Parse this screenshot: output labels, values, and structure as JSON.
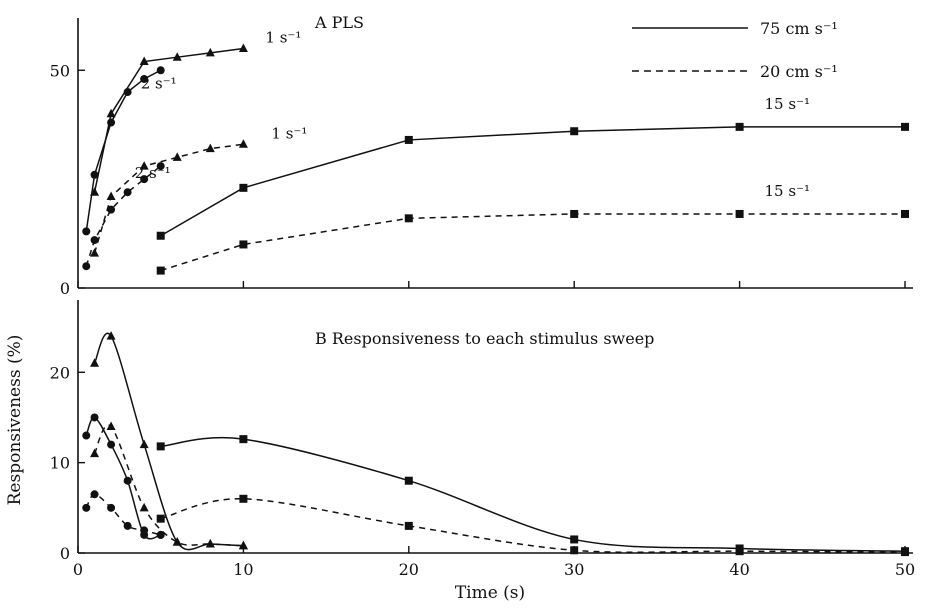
{
  "figure": {
    "ylabel": "Responsiveness (%)",
    "xlabel": "Time (s)",
    "legend": [
      {
        "label": "75 cm s⁻¹",
        "style": "solid"
      },
      {
        "label": "20 cm s⁻¹",
        "style": "dashed"
      }
    ]
  },
  "chart_data": [
    {
      "type": "line",
      "panel": "A",
      "title": "A   PLS",
      "xlabel": "Time (s)",
      "ylabel": "Responsiveness (%)",
      "xlim": [
        0,
        50
      ],
      "ylim": [
        0,
        62
      ],
      "yticks": [
        0,
        50
      ],
      "xticks": [
        0,
        10,
        20,
        30,
        40,
        50
      ],
      "grid": false,
      "legend_position": "top-right",
      "series": [
        {
          "label": "1 s⁻¹",
          "speed": "75 cm s⁻¹",
          "style": "solid",
          "marker": "triangle",
          "x": [
            1,
            2,
            4,
            6,
            8,
            10
          ],
          "y": [
            22,
            40,
            52,
            53,
            54,
            55
          ]
        },
        {
          "label": "2 s⁻¹",
          "speed": "75 cm s⁻¹",
          "style": "solid",
          "marker": "circle",
          "x": [
            0.5,
            1,
            2,
            3,
            4,
            5
          ],
          "y": [
            13,
            26,
            38,
            45,
            48,
            50
          ]
        },
        {
          "label": "15 s⁻¹",
          "speed": "75 cm s⁻¹",
          "style": "solid",
          "marker": "square",
          "x": [
            5,
            10,
            20,
            30,
            40,
            50
          ],
          "y": [
            12,
            23,
            34,
            36,
            37,
            37
          ]
        },
        {
          "label": "1 s⁻¹",
          "speed": "20 cm s⁻¹",
          "style": "dashed",
          "marker": "triangle",
          "x": [
            1,
            2,
            4,
            6,
            8,
            10
          ],
          "y": [
            8,
            21,
            28,
            30,
            32,
            33
          ]
        },
        {
          "label": "2 s⁻¹",
          "speed": "20 cm s⁻¹",
          "style": "dashed",
          "marker": "circle",
          "x": [
            0.5,
            1,
            2,
            3,
            4,
            5
          ],
          "y": [
            5,
            11,
            18,
            22,
            25,
            28
          ]
        },
        {
          "label": "15 s⁻¹",
          "speed": "20 cm s⁻¹",
          "style": "dashed",
          "marker": "square",
          "x": [
            5,
            10,
            20,
            30,
            40,
            50
          ],
          "y": [
            4,
            10,
            16,
            17,
            17,
            17
          ]
        }
      ]
    },
    {
      "type": "line",
      "panel": "B",
      "title": "B   Responsiveness to each stimulus sweep",
      "xlabel": "Time (s)",
      "ylabel": "Responsiveness (%)",
      "xlim": [
        0,
        50
      ],
      "ylim": [
        0,
        28
      ],
      "yticks": [
        0,
        10,
        20
      ],
      "xticks": [
        0,
        10,
        20,
        30,
        40,
        50
      ],
      "grid": false,
      "series": [
        {
          "speed": "75 cm s⁻¹",
          "style": "solid",
          "marker": "triangle",
          "x": [
            1,
            2,
            4,
            6,
            8,
            10
          ],
          "y": [
            21,
            24,
            12,
            1.2,
            1,
            0.8
          ]
        },
        {
          "speed": "75 cm s⁻¹",
          "style": "solid",
          "marker": "circle",
          "x": [
            0.5,
            1,
            2,
            3,
            4,
            5
          ],
          "y": [
            13,
            15,
            12,
            8,
            2,
            2
          ]
        },
        {
          "speed": "75 cm s⁻¹",
          "style": "solid",
          "marker": "square",
          "x": [
            5,
            10,
            20,
            30,
            40,
            50
          ],
          "y": [
            11.8,
            12.6,
            8,
            1.5,
            0.5,
            0.2
          ]
        },
        {
          "speed": "20 cm s⁻¹",
          "style": "dashed",
          "marker": "triangle",
          "x": [
            1,
            2,
            4,
            6,
            8,
            10
          ],
          "y": [
            11,
            14,
            5,
            1.2,
            1,
            0.8
          ]
        },
        {
          "speed": "20 cm s⁻¹",
          "style": "dashed",
          "marker": "circle",
          "x": [
            0.5,
            1,
            2,
            3,
            4,
            5
          ],
          "y": [
            5,
            6.5,
            5,
            3,
            2.5,
            2
          ]
        },
        {
          "speed": "20 cm s⁻¹",
          "style": "dashed",
          "marker": "square",
          "x": [
            5,
            10,
            20,
            30,
            40,
            50
          ],
          "y": [
            3.8,
            6,
            3,
            0.3,
            0.2,
            0.1
          ]
        }
      ]
    }
  ]
}
